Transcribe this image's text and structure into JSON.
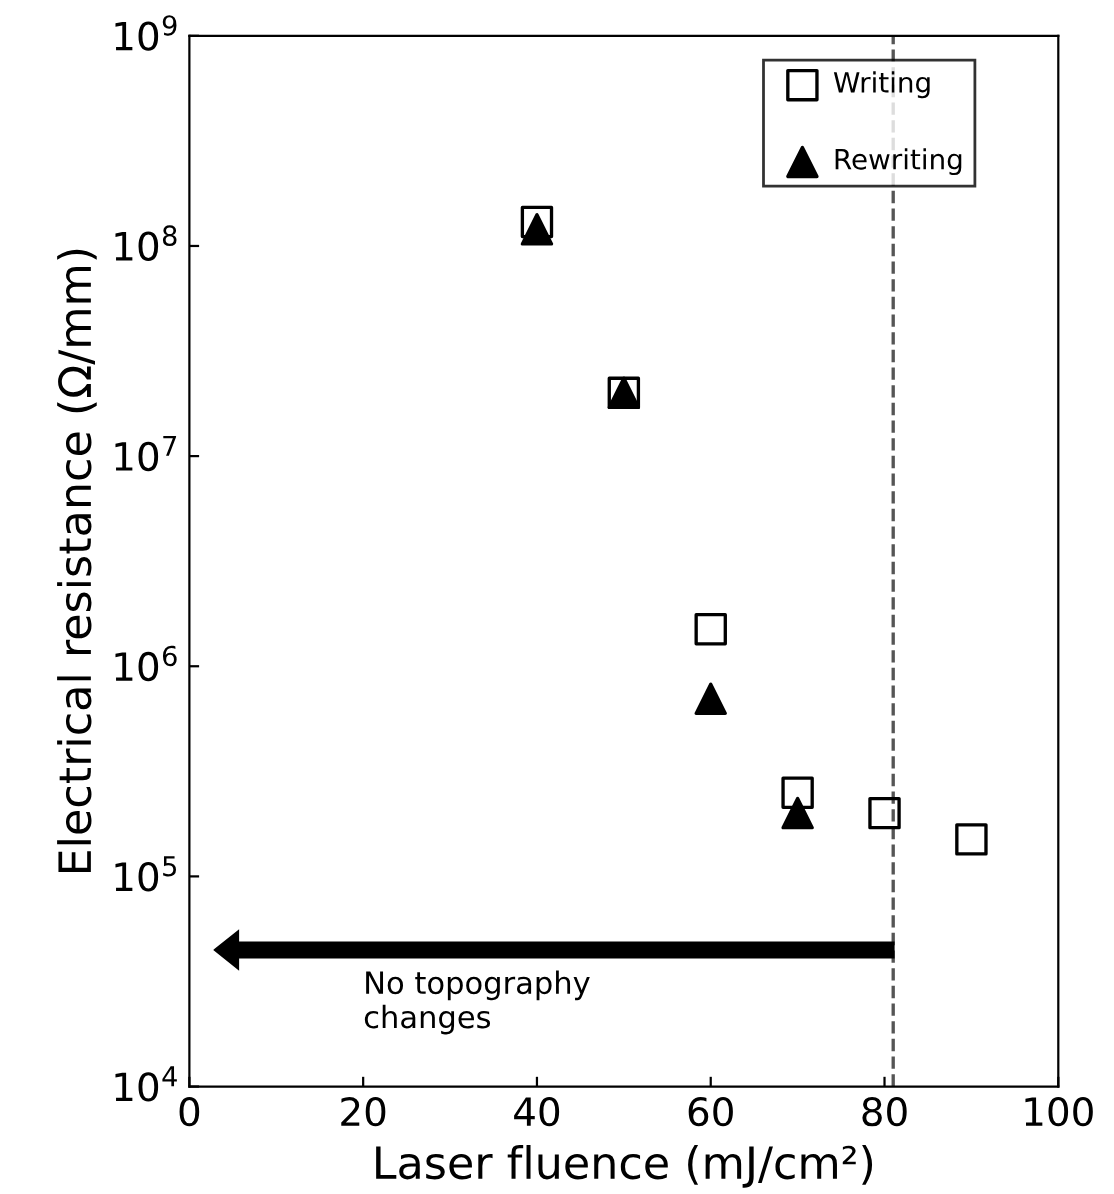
{
  "chart_data": {
    "type": "scatter",
    "xlabel": "Laser fluence (mJ/cm²)",
    "ylabel": "Electrical resistance (Ω/mm)",
    "series": [
      {
        "name": "Writing",
        "color": "#000000",
        "marker": "square",
        "x": [
          40,
          50,
          60,
          70,
          80,
          90
        ],
        "values": [
          130000000,
          20000000,
          1500000,
          250000,
          200000,
          150000
        ]
      },
      {
        "name": "Rewriting",
        "color": "#000000",
        "marker": "triangle",
        "x": [
          40,
          50,
          60,
          70
        ],
        "values": [
          120000000,
          20000000,
          700000,
          200000
        ]
      }
    ],
    "log": "y",
    "xlim": [
      0,
      100
    ],
    "ylim": [
      10000,
      1000000000
    ],
    "xticks": [
      0,
      20,
      40,
      60,
      80,
      100
    ],
    "yticks": [
      {
        "value": 10000,
        "label": "10$^{4}$"
      },
      {
        "value": 100000,
        "label": "10$^{5}$"
      },
      {
        "value": 1000000,
        "label": "10$^{6}$"
      },
      {
        "value": 10000000,
        "label": "10$^{7}$"
      },
      {
        "value": 100000000,
        "label": "10$^{8}$"
      },
      {
        "value": 1000000000,
        "label": "10$^{9}$"
      }
    ],
    "ref_lines": [
      {
        "axis": "x",
        "value": 81,
        "line_style": "dashed",
        "color": "#555555"
      }
    ],
    "annotations": [
      "No topography\nchanges"
    ],
    "grid": false,
    "legend": "top right"
  }
}
